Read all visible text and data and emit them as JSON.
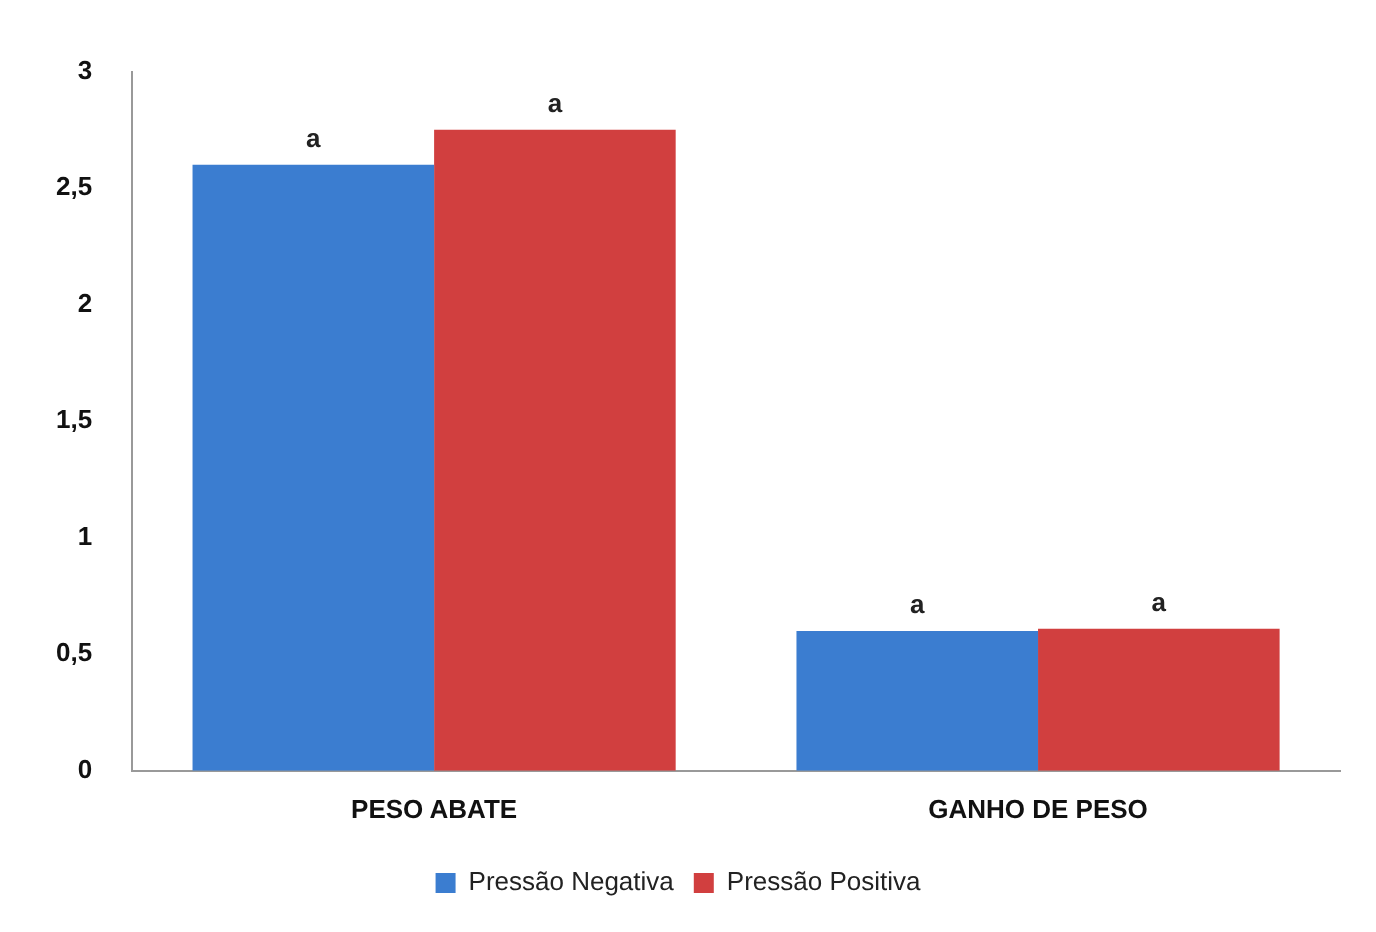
{
  "chart_data": {
    "type": "bar",
    "categories": [
      "PESO ABATE",
      "GANHO DE PESO"
    ],
    "series": [
      {
        "name": "Pressão Negativa",
        "color": "#3b7dd0",
        "values": [
          2.6,
          0.6
        ]
      },
      {
        "name": "Pressão Positiva",
        "color": "#d13f3f",
        "values": [
          2.75,
          0.61
        ]
      }
    ],
    "ylim": [
      0,
      3
    ],
    "yticks": [
      0,
      {
        "value": 0.5,
        "label": "0,5"
      },
      1,
      {
        "value": 1.5,
        "label": "1,5"
      },
      2,
      {
        "value": 2.5,
        "label": "2,5"
      },
      3
    ],
    "grid": false,
    "legend": "bottom",
    "annotations": [
      "a",
      "a",
      "a",
      "a"
    ]
  }
}
